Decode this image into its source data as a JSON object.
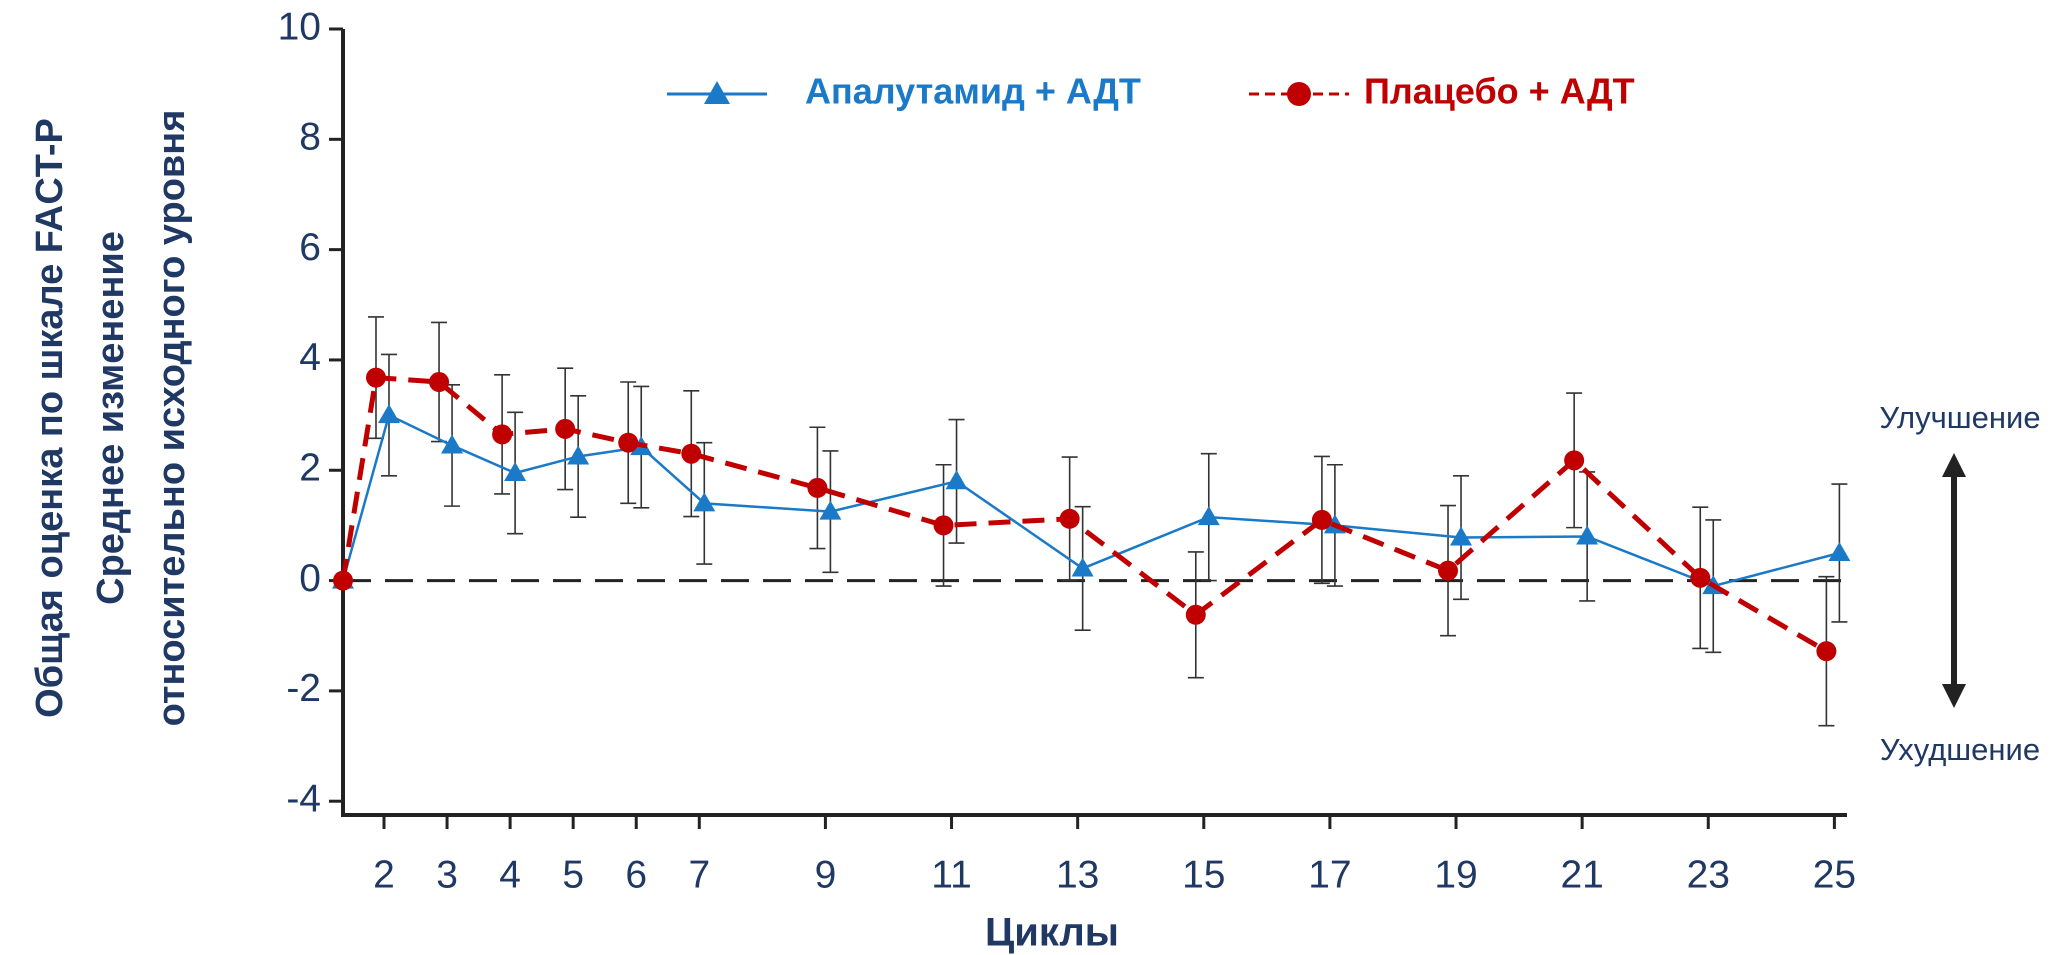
{
  "chart_data": {
    "type": "line",
    "ylabel": [
      "Общая оценка по шкале FACT-P",
      "Среднее изменение",
      "относительно исходного уровня"
    ],
    "xlabel": "Циклы",
    "x": [
      1.35,
      2,
      3,
      4,
      5,
      6,
      7,
      9,
      11,
      13,
      15,
      17,
      19,
      21,
      23,
      25
    ],
    "xlim": [
      1.35,
      25.2
    ],
    "xticks": [
      2,
      3,
      4,
      5,
      6,
      7,
      9,
      11,
      13,
      15,
      17,
      19,
      21,
      23,
      25
    ],
    "ylim": [
      -4.25,
      10
    ],
    "yticks": [
      -4,
      -2,
      0,
      2,
      4,
      6,
      8,
      10
    ],
    "series": [
      {
        "name": "Апалутамид + АДТ",
        "color": "#1a7ac8",
        "marker": "triangle",
        "dash": false,
        "values": [
          0,
          3.0,
          2.45,
          1.95,
          2.25,
          2.42,
          1.4,
          1.25,
          1.8,
          0.22,
          1.15,
          1.0,
          0.78,
          0.8,
          -0.1,
          0.5
        ],
        "errors": [
          null,
          1.1,
          1.1,
          1.1,
          1.1,
          1.1,
          1.1,
          1.1,
          1.12,
          1.12,
          1.15,
          1.1,
          1.12,
          1.17,
          1.2,
          1.25
        ]
      },
      {
        "name": "Плацебо + АДТ",
        "color": "#c00000",
        "marker": "circle",
        "dash": true,
        "values": [
          0,
          3.68,
          3.6,
          2.65,
          2.75,
          2.5,
          2.3,
          1.68,
          1.0,
          1.12,
          -0.62,
          1.1,
          0.18,
          2.18,
          0.05,
          -1.28
        ],
        "errors": [
          null,
          1.1,
          1.08,
          1.08,
          1.1,
          1.1,
          1.14,
          1.1,
          1.1,
          1.12,
          1.14,
          1.15,
          1.18,
          1.22,
          1.28,
          1.35
        ]
      }
    ],
    "annotations": [
      "Улучшение",
      "Ухудшение"
    ]
  }
}
